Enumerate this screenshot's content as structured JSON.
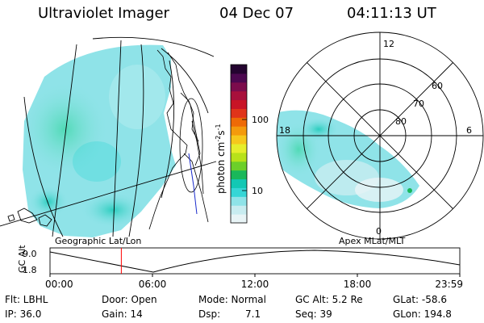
{
  "header": {
    "instrument": "Ultraviolet Imager",
    "date": "04 Dec 07",
    "time": "04:11:13 UT"
  },
  "colorbar": {
    "label": "photon cm^-2 s^-1",
    "label_main": "photon cm",
    "label_exp1": "-2",
    "label_mid": "s",
    "label_exp2": "-1",
    "ticks": [
      "100",
      "10"
    ],
    "colors": [
      "#e8f4f6",
      "#c8ecf0",
      "#8fe3e8",
      "#36d6d6",
      "#12c8b4",
      "#1ab85a",
      "#6ccf2a",
      "#b8e21a",
      "#e6ee2c",
      "#f6c81c",
      "#f49a0c",
      "#ee6a06",
      "#e0341a",
      "#c81426",
      "#a8103c",
      "#7c0c4c",
      "#4c0850",
      "#240430"
    ]
  },
  "left_map": {
    "caption": "Geographic Lat/Lon"
  },
  "polar_map": {
    "caption": "Apex MLat/MLT",
    "mlt_labels": [
      "12",
      "18",
      "6",
      "0"
    ],
    "lat_labels": [
      "60",
      "70",
      "80"
    ]
  },
  "altitude_plot": {
    "axis_label": "GC Alt",
    "y_ticks": [
      "9.0",
      "1.8"
    ],
    "x_ticks": [
      "00:00",
      "06:00",
      "12:00",
      "18:00",
      "23:59"
    ],
    "current_time_fraction": 0.174,
    "marker_color": "#ff0000"
  },
  "info": {
    "filter": "Flt: LBHL",
    "ip": "IP: 36.0",
    "door": "Door: Open",
    "gain": "Gain: 14",
    "mode": "Mode: Normal",
    "dsp_label": "Dsp:",
    "dsp_value": "7.1",
    "gc_alt": "GC Alt: 5.2 Re",
    "seq": "Seq: 39",
    "glat": "GLat: -58.6",
    "glon": "GLon: 194.8"
  }
}
